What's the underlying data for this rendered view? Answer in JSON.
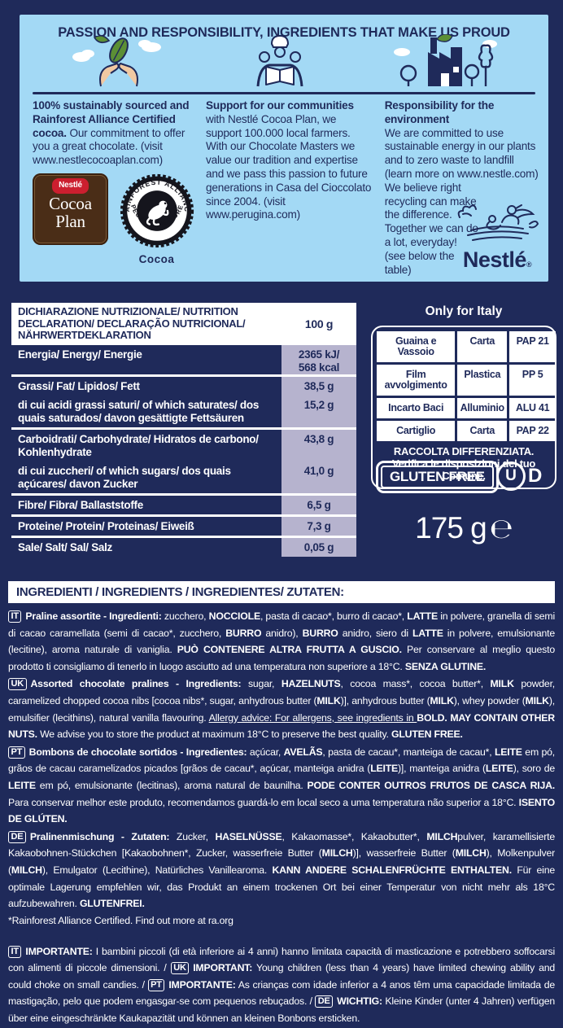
{
  "colors": {
    "navy": "#1f2a5a",
    "light_blue": "#a3d9f5",
    "lavender": "#b6b3ce",
    "brown": "#4a2d17",
    "red": "#cc1f2f",
    "white": "#ffffff"
  },
  "top_panel": {
    "title": "PASSION AND RESPONSIBILITY, INGREDIENTS THAT MAKE US PROUD",
    "columns": [
      {
        "segments": [
          {
            "t": "100% sustainably sourced and Rainforest Alliance Certified cocoa.",
            "b": true
          },
          {
            "t": " Our commitment to offer you a great chocolate. (visit www.nestlecocoaplan.com)"
          }
        ]
      },
      {
        "segments": [
          {
            "t": "Support for our communities",
            "b": true,
            "blk": true
          },
          {
            "t": "with Nestlé Cocoa Plan, we support 100.000 local farmers. With our Chocolate Masters we value our tradition and expertise and we pass this passion to future generations in Casa del Cioccolato since 2004. (visit www.perugina.com)"
          }
        ]
      },
      {
        "segments": [
          {
            "t": "Responsibility for the environment",
            "b": true,
            "blk": true
          },
          {
            "t": "We are committed to use sustainable energy in our plants and to zero waste to landfill (learn more on www.nestle.com)",
            "blk": true
          },
          {
            "t": "We believe right recycling can make the difference. Together we can do a lot, everyday! (see below the table)",
            "nr": true
          }
        ]
      }
    ],
    "cocoa_plan": {
      "brand": "Nestlé",
      "name_line1": "Cocoa",
      "name_line2": "Plan"
    },
    "rainforest_seal": {
      "arc_top": "RAINFOREST ALLIANCE",
      "arc_bottom": "• PEOPLE & NATURE •",
      "caption": "Cocoa"
    },
    "nestle_wordmark": "Nestlé",
    "registered_mark": "®"
  },
  "nutrition": {
    "header_label": "DICHIARAZIONE NUTRIZIONALE/ NUTRITION DECLARATION/ DECLARAÇÃO NUTRICIONAL/ NÄHRWERTDEKLARATION",
    "header_amount": "100 g",
    "groups": [
      {
        "rows": [
          {
            "label": "Energia/ Energy/ Energie",
            "value": "2365 kJ/\n568 kcal"
          }
        ]
      },
      {
        "rows": [
          {
            "label": "Grassi/ Fat/ Lipidos/ Fett",
            "value": "38,5 g"
          },
          {
            "label": "di cui acidi grassi saturi/ of which saturates/ dos quais saturados/ davon gesättigte Fettsäuren",
            "value": "15,2 g"
          }
        ]
      },
      {
        "rows": [
          {
            "label": "Carboidrati/ Carbohydrate/ Hidratos de carbono/ Kohlenhydrate",
            "value": "43,8 g"
          },
          {
            "label": "di cui zuccheri/ of which sugars/ dos quais açúcares/ davon Zucker",
            "value": "41,0 g"
          }
        ]
      },
      {
        "rows": [
          {
            "label": "Fibre/ Fibra/ Ballaststoffe",
            "value": "6,5 g"
          }
        ]
      },
      {
        "rows": [
          {
            "label": "Proteine/ Protein/ Proteinas/ Eiweiß",
            "value": "7,3 g"
          }
        ]
      },
      {
        "rows": [
          {
            "label": "Sale/ Salt/ Sal/ Salz",
            "value": "0,05 g"
          }
        ]
      }
    ]
  },
  "italy": {
    "title": "Only for Italy",
    "rows": [
      [
        "Guaina e Vassoio",
        "Carta",
        "PAP 21"
      ],
      [
        "Film avvolgimento",
        "Plastica",
        "PP 5"
      ],
      [
        "Incarto Baci",
        "Alluminio",
        "ALU 41"
      ],
      [
        "Cartiglio",
        "Carta",
        "PAP 22"
      ]
    ],
    "footer": "RACCOLTA DIFFERENZIATA. Verifica le disposizioni del tuo Comune."
  },
  "badges": {
    "gluten_free": "GLUTEN FREE",
    "kosher_u": "U",
    "kosher_d": "D"
  },
  "weight": {
    "amount": "175 g",
    "estimated_sign": "℮"
  },
  "ingredients": {
    "header": "INGREDIENTI / INGREDIENTS / INGREDIENTES/ ZUTATEN:",
    "paragraphs": [
      {
        "segments": [
          {
            "t": "IT",
            "tag": true
          },
          {
            "t": "Praline assortite - Ingredienti:",
            "b": true
          },
          {
            "t": " zucchero, "
          },
          {
            "t": "NOCCIOLE",
            "b": true
          },
          {
            "t": ", pasta di cacao*, burro di cacao*, "
          },
          {
            "t": "LATTE",
            "b": true
          },
          {
            "t": " in polvere, granella di semi di cacao caramellata (semi di cacao*, zucchero, "
          },
          {
            "t": "BURRO",
            "b": true
          },
          {
            "t": " anidro), "
          },
          {
            "t": "BURRO",
            "b": true
          },
          {
            "t": " anidro, siero di "
          },
          {
            "t": "LATTE",
            "b": true
          },
          {
            "t": " in polvere, emulsionante (lecitine), aroma naturale di vaniglia. "
          },
          {
            "t": "PUÒ CONTENERE ALTRA FRUTTA A GUSCIO.",
            "b": true
          },
          {
            "t": " Per conservare al meglio questo prodotto ti consigliamo di tenerlo in luogo asciutto ad una temperatura non superiore a 18°C. "
          },
          {
            "t": "SENZA GLUTINE.",
            "b": true
          }
        ]
      },
      {
        "segments": [
          {
            "t": "UK",
            "tag": true
          },
          {
            "t": "Assorted chocolate pralines - Ingredients:",
            "b": true
          },
          {
            "t": " sugar, "
          },
          {
            "t": "HAZELNUTS",
            "b": true
          },
          {
            "t": ", cocoa mass*, cocoa butter*, "
          },
          {
            "t": "MILK",
            "b": true
          },
          {
            "t": " powder, caramelized chopped cocoa nibs [cocoa nibs*, sugar, anhydrous butter ("
          },
          {
            "t": "MILK",
            "b": true
          },
          {
            "t": ")], anhydrous butter ("
          },
          {
            "t": "MILK",
            "b": true
          },
          {
            "t": "), whey powder ("
          },
          {
            "t": "MILK",
            "b": true
          },
          {
            "t": "), emulsifier (lecithins), natural vanilla flavouring. "
          },
          {
            "t": "Allergy advice: For allergens, see ingredients in ",
            "u": true
          },
          {
            "t": "BOLD.",
            "b": true
          },
          {
            "t": " "
          },
          {
            "t": "MAY CONTAIN OTHER NUTS.",
            "b": true
          },
          {
            "t": " We advise you to store the product at maximum 18°C to preserve the best quality. "
          },
          {
            "t": "GLUTEN FREE.",
            "b": true
          }
        ]
      },
      {
        "segments": [
          {
            "t": "PT",
            "tag": true
          },
          {
            "t": "Bombons de chocolate sortidos - Ingredientes:",
            "b": true
          },
          {
            "t": " açúcar, "
          },
          {
            "t": "AVELÃS",
            "b": true
          },
          {
            "t": ", pasta de cacau*, manteiga de cacau*, "
          },
          {
            "t": "LEITE",
            "b": true
          },
          {
            "t": " em pó, grãos de cacau caramelizados picados [grãos de cacau*, açúcar, manteiga anidra ("
          },
          {
            "t": "LEITE",
            "b": true
          },
          {
            "t": ")], manteiga anidra ("
          },
          {
            "t": "LEITE",
            "b": true
          },
          {
            "t": "), soro de "
          },
          {
            "t": "LEITE",
            "b": true
          },
          {
            "t": " em pó, emulsionante (lecitinas), aroma natural de baunilha. "
          },
          {
            "t": "PODE CONTER OUTROS FRUTOS DE CASCA RIJA.",
            "b": true
          },
          {
            "t": " Para conservar melhor este produto, recomendamos guardá-lo em local seco a uma temperatura não superior a 18°C. "
          },
          {
            "t": "ISENTO DE GLÚTEN.",
            "b": true
          }
        ]
      },
      {
        "segments": [
          {
            "t": "DE",
            "tag": true
          },
          {
            "t": "Pralinenmischung - Zutaten:",
            "b": true
          },
          {
            "t": " Zucker, "
          },
          {
            "t": "HASELNÜSSE",
            "b": true
          },
          {
            "t": ", Kakaomasse*, Kakaobutter*, "
          },
          {
            "t": "MILCH",
            "b": true
          },
          {
            "t": "pulver, karamellisierte Kakaobohnen-Stückchen [Kakaobohnen*, Zucker, wasserfreie Butter ("
          },
          {
            "t": "MILCH",
            "b": true
          },
          {
            "t": ")], wasserfreie Butter ("
          },
          {
            "t": "MILCH",
            "b": true
          },
          {
            "t": "), Molkenpulver ("
          },
          {
            "t": "MILCH",
            "b": true
          },
          {
            "t": "), Emulgator (Lecithine), Natürliches Vanillearoma. "
          },
          {
            "t": "KANN ANDERE SCHALENFRÜCHTE ENTHALTEN.",
            "b": true
          },
          {
            "t": " Für eine optimale Lagerung empfehlen wir, das Produkt an einem trockenen Ort bei einer Temperatur von nicht mehr als 18°C aufzubewahren. "
          },
          {
            "t": "GLUTENFREI.",
            "b": true
          }
        ]
      }
    ],
    "footnote": "*Rainforest Alliance Certified. Find out more at ra.org",
    "warning": {
      "segments": [
        {
          "t": "IT",
          "tag": true
        },
        {
          "t": "IMPORTANTE:",
          "b": true
        },
        {
          "t": " I bambini piccoli (di età inferiore ai 4 anni) hanno limitata capacità di masticazione e potrebbero soffocarsi con alimenti di piccole dimensioni. / "
        },
        {
          "t": "UK",
          "tag": true
        },
        {
          "t": "IMPORTANT:",
          "b": true
        },
        {
          "t": " Young children (less than 4 years) have limited chewing ability and could choke on small candies. / "
        },
        {
          "t": "PT",
          "tag": true
        },
        {
          "t": "IMPORTANTE:",
          "b": true
        },
        {
          "t": " As crianças com idade inferior a 4 anos têm uma capacidade limitada de mastigação, pelo que podem engasgar-se com pequenos rebuçados. / "
        },
        {
          "t": "DE",
          "tag": true
        },
        {
          "t": "WICHTIG:",
          "b": true
        },
        {
          "t": " Kleine Kinder (unter 4 Jahren) verfügen über eine eingeschränkte Kaukapazität und können an kleinen Bonbons ersticken."
        }
      ]
    }
  }
}
